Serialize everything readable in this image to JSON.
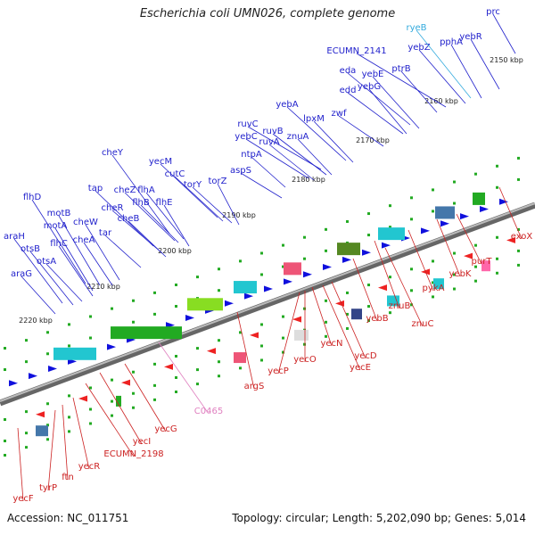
{
  "title": "Escherichia coli UMN026, complete genome",
  "footer": {
    "accession": "Accession: NC_011751",
    "summary": "Topology: circular; Length: 5,202,090 bp; Genes: 5,014"
  },
  "colors": {
    "forward_label": "#2222cc",
    "reverse_label": "#cc2222",
    "rna_label": "#33aadd",
    "pseudo_label": "#e080c0",
    "backbone": "#888888"
  },
  "kbp_ticks": [
    "2150 kbp",
    "2160 kbp",
    "2170 kbp",
    "2180 kbp",
    "2190 kbp",
    "2200 kbp",
    "2210 kbp",
    "2220 kbp"
  ],
  "forward_genes": [
    "prc",
    "yebR",
    "pphA",
    "yebZ",
    "ECUMN_2141",
    "ptrB",
    "eda",
    "yebE",
    "edd",
    "yebG",
    "zwf",
    "yebA",
    "lpxM",
    "ruvC",
    "ruvB",
    "yebC",
    "ruvA",
    "znuA",
    "ntpA",
    "aspS",
    "yecM",
    "cutC",
    "torY",
    "torZ",
    "cheY",
    "cheZ",
    "tap",
    "flhA",
    "cheR",
    "flhB",
    "cheB",
    "flhE",
    "flhD",
    "motB",
    "cheW",
    "motA",
    "tar",
    "araH",
    "flhC",
    "cheA",
    "otsB",
    "otsA",
    "araG"
  ],
  "reverse_genes": [
    "exoX",
    "purT",
    "yebK",
    "pykA",
    "znuB",
    "znuC",
    "yebB",
    "yecD",
    "yecE",
    "yecN",
    "yecO",
    "yecP",
    "argS",
    "yecG",
    "yecI",
    "ECUMN_2198",
    "yecR",
    "ftn",
    "tyrP",
    "yecF"
  ],
  "rna_genes": [
    "ryeB"
  ],
  "pseudo_genes": [
    "C0465"
  ]
}
